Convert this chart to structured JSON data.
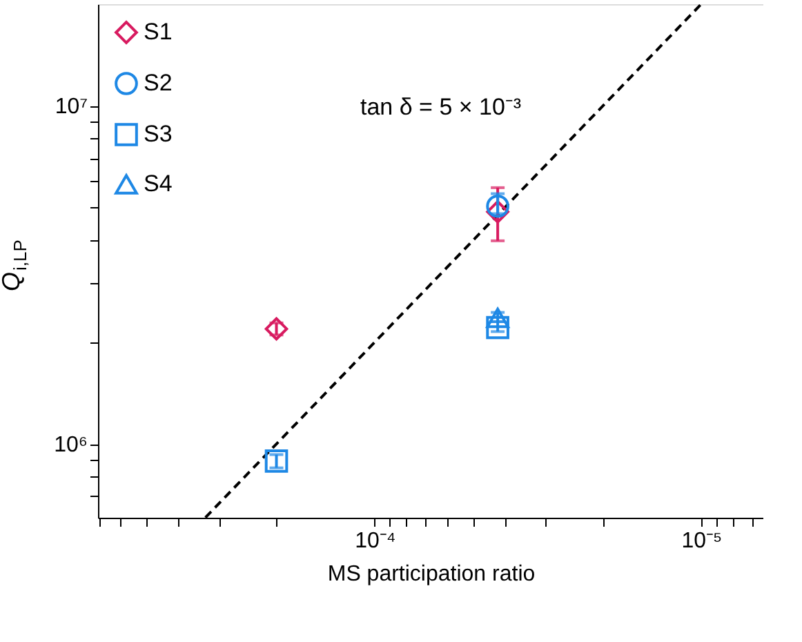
{
  "chart_data": {
    "type": "scatter",
    "xlabel": "MS participation ratio",
    "ylabel": "Q$_{i,LP}$",
    "annotations": [
      "tan δ = 5 × 10⁻³"
    ],
    "log": "xy",
    "grid": false,
    "legend": "top left",
    "xlim": [
      0.000704,
      6.45e-06
    ],
    "ylim": [
      605000.0,
      20000000.0
    ],
    "xticks": [
      {
        "value": 0.0007,
        "label": null
      },
      {
        "value": 0.0006,
        "label": null
      },
      {
        "value": 0.0005,
        "label": null
      },
      {
        "value": 0.0004,
        "label": null
      },
      {
        "value": 0.0003,
        "label": null
      },
      {
        "value": 0.0002,
        "label": null
      },
      {
        "value": 0.0001,
        "label": "10⁻⁴"
      },
      {
        "value": 9e-05,
        "label": null
      },
      {
        "value": 8e-05,
        "label": null
      },
      {
        "value": 7e-05,
        "label": null
      },
      {
        "value": 6e-05,
        "label": null
      },
      {
        "value": 5e-05,
        "label": null
      },
      {
        "value": 4e-05,
        "label": null
      },
      {
        "value": 3e-05,
        "label": null
      },
      {
        "value": 2e-05,
        "label": null
      },
      {
        "value": 1e-05,
        "label": "10⁻⁵"
      },
      {
        "value": 9e-06,
        "label": null
      },
      {
        "value": 8e-06,
        "label": null
      },
      {
        "value": 7e-06,
        "label": null
      }
    ],
    "yticks": [
      {
        "value": 700000,
        "label": null
      },
      {
        "value": 800000,
        "label": null
      },
      {
        "value": 900000,
        "label": null
      },
      {
        "value": 1000000,
        "label": "10⁶"
      },
      {
        "value": 2000000,
        "label": null
      },
      {
        "value": 3000000,
        "label": null
      },
      {
        "value": 4000000,
        "label": null
      },
      {
        "value": 5000000,
        "label": null
      },
      {
        "value": 6000000,
        "label": null
      },
      {
        "value": 7000000,
        "label": null
      },
      {
        "value": 8000000,
        "label": null
      },
      {
        "value": 9000000,
        "label": null
      },
      {
        "value": 10000000,
        "label": "10⁷"
      }
    ],
    "series": [
      {
        "name": "S1",
        "color": "#d81b60",
        "marker": "diamond",
        "x": [
          0.0002,
          4.2e-05
        ],
        "values": [
          2190000.0,
          4860000.0
        ],
        "errors": [
          [
            2100000.0,
            2280000.0
          ],
          [
            3990000.0,
            5730000.0
          ]
        ]
      },
      {
        "name": "S2",
        "color": "#1e88e5",
        "marker": "circle",
        "x": [
          4.2e-05
        ],
        "values": [
          5050000.0
        ],
        "errors": [
          [
            4800000.0,
            5500000.0
          ]
        ]
      },
      {
        "name": "S3",
        "color": "#1e88e5",
        "marker": "square",
        "x": [
          0.0002,
          4.2e-05
        ],
        "values": [
          890000.0,
          2210000.0
        ],
        "errors": [
          [
            850000.0,
            930000.0
          ],
          [
            2150000.0,
            2300000.0
          ]
        ]
      },
      {
        "name": "S4",
        "color": "#1e88e5",
        "marker": "triangle",
        "x": [
          4.2e-05
        ],
        "values": [
          2360000.0
        ],
        "errors": [
          [
            2300000.0,
            2450000.0
          ]
        ]
      },
      {
        "type": "line",
        "color": "#000000",
        "line_style": "dashed",
        "x": [
          0.00033,
          1e-05
        ],
        "values": [
          606000.0,
          20000000.0
        ]
      }
    ]
  }
}
